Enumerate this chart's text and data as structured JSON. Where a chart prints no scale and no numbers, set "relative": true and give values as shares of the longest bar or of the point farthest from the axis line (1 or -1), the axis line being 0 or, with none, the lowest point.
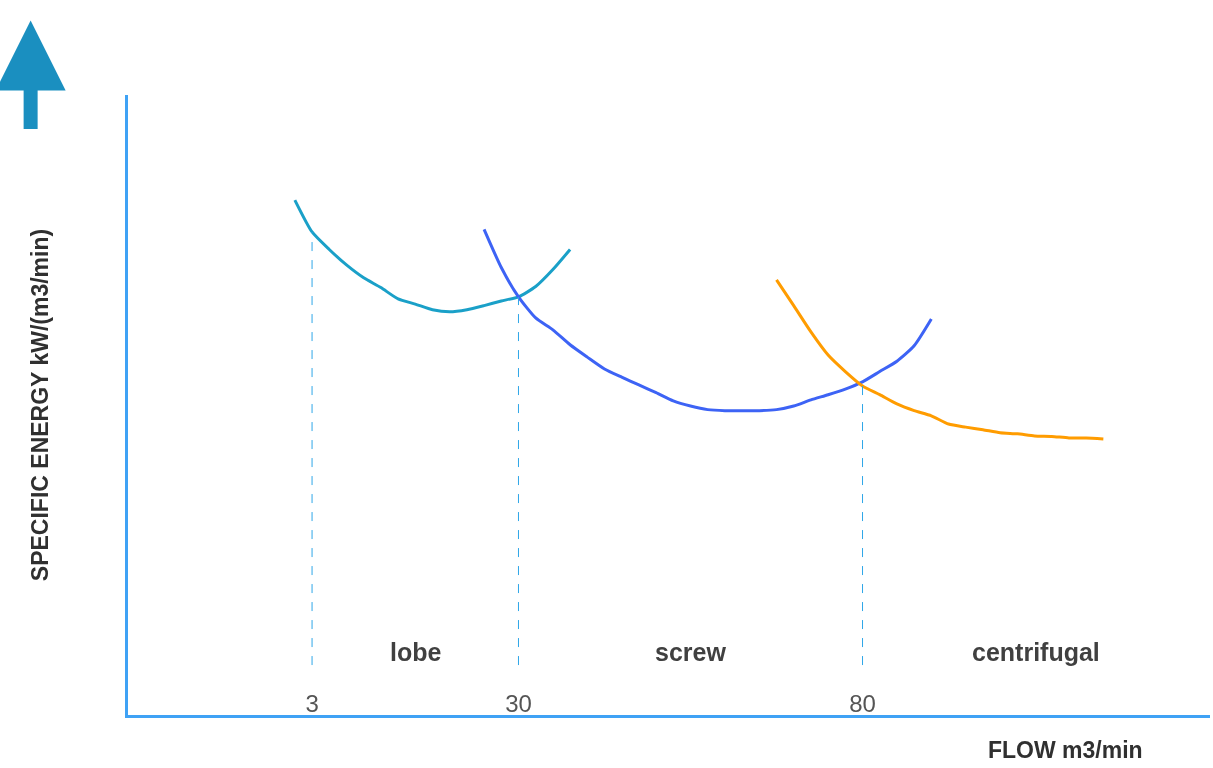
{
  "chart_data": {
    "type": "line",
    "relative": true,
    "ylabel": "SPECIFIC ENERGY kW/(m3/min)",
    "xlabel": "FLOW m3/min",
    "categories": [
      null,
      null,
      null,
      null,
      null,
      null,
      null,
      null,
      null,
      null,
      "3",
      null,
      null,
      null,
      null,
      null,
      null,
      null,
      null,
      null,
      null,
      null,
      "30",
      null,
      null,
      null,
      null,
      null,
      null,
      null,
      null,
      null,
      null,
      null,
      null,
      null,
      null,
      null,
      null,
      null,
      null,
      null,
      "80",
      null,
      null,
      null,
      null,
      null,
      null,
      null,
      null,
      null,
      null,
      null,
      null,
      null,
      null,
      null,
      null,
      null,
      null,
      null,
      null
    ],
    "series": [
      {
        "color": "#1aa0c8",
        "values": [
          null,
          null,
          null,
          null,
          null,
          null,
          null,
          null,
          null,
          1,
          0.938,
          0.904,
          0.874,
          0.849,
          0.83,
          0.808,
          0.798,
          0.787,
          0.783,
          0.787,
          0.795,
          0.804,
          0.812,
          0.832,
          0.865,
          0.904,
          null,
          null,
          null,
          null,
          null,
          null,
          null,
          null,
          null,
          null,
          null,
          null,
          null,
          null,
          null,
          null,
          null,
          null,
          null,
          null,
          null,
          null,
          null,
          null,
          null,
          null,
          null,
          null,
          null,
          null,
          null,
          null,
          null,
          null,
          null,
          null,
          null
        ]
      },
      {
        "color": "#3d63f5",
        "values": [
          null,
          null,
          null,
          null,
          null,
          null,
          null,
          null,
          null,
          null,
          null,
          null,
          null,
          null,
          null,
          null,
          null,
          null,
          null,
          null,
          0.943,
          0.869,
          0.812,
          0.771,
          0.748,
          0.719,
          0.695,
          0.672,
          0.656,
          0.641,
          0.626,
          0.61,
          0.6,
          0.593,
          0.591,
          0.591,
          0.591,
          0.593,
          0.6,
          0.612,
          0.622,
          0.633,
          0.647,
          0.667,
          0.687,
          0.717,
          0.769,
          null,
          null,
          null,
          null,
          null,
          null,
          null,
          null,
          null,
          null,
          null,
          null,
          null,
          null,
          null,
          null
        ]
      },
      {
        "color": "#ff9c00",
        "values": [
          null,
          null,
          null,
          null,
          null,
          null,
          null,
          null,
          null,
          null,
          null,
          null,
          null,
          null,
          null,
          null,
          null,
          null,
          null,
          null,
          null,
          null,
          null,
          null,
          null,
          null,
          null,
          null,
          null,
          null,
          null,
          null,
          null,
          null,
          null,
          null,
          null,
          0.845,
          0.795,
          0.744,
          0.699,
          0.667,
          0.639,
          0.622,
          0.604,
          0.591,
          0.581,
          0.565,
          0.559,
          0.554,
          0.548,
          0.546,
          0.542,
          0.541,
          0.538,
          0.538,
          0.536,
          null,
          null,
          null,
          null,
          null,
          null
        ]
      }
    ],
    "ref_lines": [
      {
        "axis": "x",
        "value": "3",
        "color": "#2ea6e8",
        "line_style": "dashed"
      },
      {
        "axis": "x",
        "value": "30",
        "color": "#2ea6e8",
        "line_style": "dashed"
      },
      {
        "axis": "x",
        "value": "80",
        "color": "#2ea6e8",
        "line_style": "dashed"
      }
    ],
    "annotations": [
      "lobe",
      "screw",
      "centrifugal"
    ],
    "line_style": "solid"
  }
}
